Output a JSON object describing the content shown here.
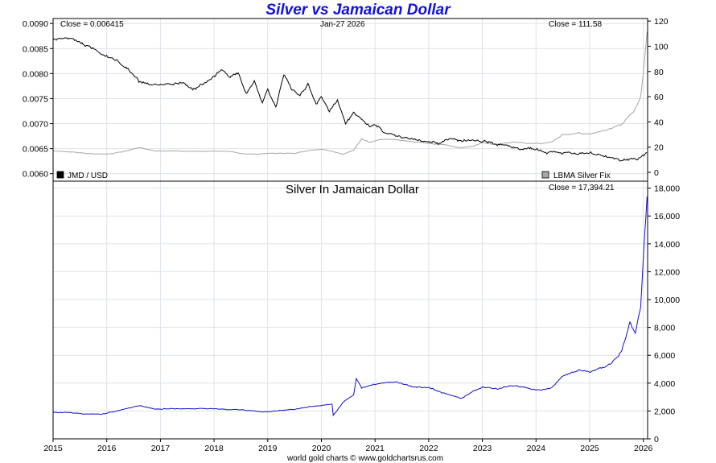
{
  "page": {
    "title": "Silver vs Jamaican Dollar",
    "footer": "world gold charts © www.goldchartsrus.com"
  },
  "chart_data": [
    {
      "type": "line",
      "title": "Silver vs Jamaican Dollar",
      "annotations": {
        "close_left": "Close = 0.006415",
        "date": "Jan-27  2026",
        "close_right": "Close = 111.58"
      },
      "legend": [
        {
          "name": "JMD / USD",
          "color": "#000000",
          "placement": "bottom-left"
        },
        {
          "name": "LBMA Silver Fix",
          "color": "#a6a6a6",
          "placement": "bottom-right"
        }
      ],
      "x_ticks": [
        "2015",
        "2016",
        "2017",
        "2018",
        "2019",
        "2020",
        "2021",
        "2022",
        "2023",
        "2024",
        "2025",
        "2026"
      ],
      "xlim": [
        2015.0,
        2026.08
      ],
      "left_axis": {
        "ylim": [
          0.00585,
          0.0091
        ],
        "ticks": [
          "0.0060",
          "0.0065",
          "0.0070",
          "0.0075",
          "0.0080",
          "0.0085",
          "0.0090"
        ]
      },
      "right_axis": {
        "ylim": [
          -7,
          122
        ],
        "ticks": [
          "0",
          "20",
          "40",
          "60",
          "80",
          "100",
          "120"
        ]
      },
      "grid": true,
      "series": [
        {
          "name": "JMD / USD",
          "axis": "left",
          "color": "#000000",
          "x": [
            2015.0,
            2015.2,
            2015.5,
            2015.8,
            2016.0,
            2016.2,
            2016.4,
            2016.6,
            2016.8,
            2017.0,
            2017.2,
            2017.4,
            2017.6,
            2017.8,
            2018.0,
            2018.15,
            2018.3,
            2018.45,
            2018.6,
            2018.75,
            2018.9,
            2019.0,
            2019.15,
            2019.3,
            2019.45,
            2019.6,
            2019.75,
            2019.9,
            2020.0,
            2020.15,
            2020.3,
            2020.45,
            2020.6,
            2020.75,
            2020.9,
            2021.0,
            2021.2,
            2021.4,
            2021.6,
            2021.8,
            2022.0,
            2022.2,
            2022.4,
            2022.6,
            2022.8,
            2023.0,
            2023.3,
            2023.6,
            2023.9,
            2024.2,
            2024.5,
            2024.8,
            2025.0,
            2025.3,
            2025.6,
            2025.9,
            2026.07
          ],
          "y": [
            0.00868,
            0.00872,
            0.00862,
            0.00848,
            0.00838,
            0.00825,
            0.00808,
            0.00782,
            0.00775,
            0.00776,
            0.00778,
            0.00782,
            0.00768,
            0.00778,
            0.00795,
            0.00806,
            0.00792,
            0.00803,
            0.0076,
            0.00784,
            0.00742,
            0.0077,
            0.00735,
            0.00798,
            0.00768,
            0.0076,
            0.0078,
            0.00738,
            0.00755,
            0.00725,
            0.00745,
            0.007,
            0.00722,
            0.00708,
            0.00692,
            0.00698,
            0.0068,
            0.00675,
            0.00672,
            0.00665,
            0.00665,
            0.0066,
            0.00672,
            0.00668,
            0.00664,
            0.00662,
            0.00658,
            0.00652,
            0.0065,
            0.00645,
            0.00643,
            0.0064,
            0.00642,
            0.00635,
            0.00628,
            0.00628,
            0.00642
          ]
        },
        {
          "name": "LBMA Silver Fix",
          "axis": "right",
          "color": "#a6a6a6",
          "x": [
            2015.0,
            2015.3,
            2015.6,
            2015.9,
            2016.1,
            2016.4,
            2016.6,
            2016.9,
            2017.2,
            2017.5,
            2017.8,
            2018.0,
            2018.3,
            2018.6,
            2018.9,
            2019.2,
            2019.5,
            2019.8,
            2020.0,
            2020.2,
            2020.4,
            2020.6,
            2020.75,
            2020.9,
            2021.1,
            2021.4,
            2021.7,
            2022.0,
            2022.3,
            2022.6,
            2022.8,
            2023.0,
            2023.3,
            2023.6,
            2023.9,
            2024.1,
            2024.3,
            2024.5,
            2024.8,
            2025.0,
            2025.3,
            2025.6,
            2025.75,
            2025.85,
            2025.95,
            2026.0,
            2026.07
          ],
          "y": [
            17.0,
            16.5,
            15.0,
            14.5,
            15.0,
            17.5,
            19.5,
            17.0,
            17.2,
            16.8,
            16.8,
            17.0,
            16.5,
            14.8,
            14.6,
            15.2,
            15.0,
            17.5,
            18.0,
            17.0,
            14.5,
            17.5,
            26.5,
            24.0,
            26.5,
            26.0,
            24.0,
            23.0,
            22.0,
            19.5,
            20.5,
            23.5,
            22.0,
            24.0,
            23.0,
            22.5,
            24.0,
            30.0,
            31.0,
            30.5,
            33.0,
            38.0,
            46.0,
            50.0,
            60.0,
            80.0,
            111.58
          ]
        }
      ]
    },
    {
      "type": "line",
      "title": "Silver In Jamaican Dollar",
      "annotations": {
        "close": "Close = 17,394.21"
      },
      "x_ticks": [
        "2015",
        "2016",
        "2017",
        "2018",
        "2019",
        "2020",
        "2021",
        "2022",
        "2023",
        "2024",
        "2025",
        "2026"
      ],
      "xlim": [
        2015.0,
        2026.08
      ],
      "right_axis": {
        "ylim": [
          0,
          18500
        ],
        "ticks": [
          "0",
          "2,000",
          "4,000",
          "6,000",
          "8,000",
          "10,000",
          "12,000",
          "14,000",
          "16,000",
          "18,000"
        ]
      },
      "grid": true,
      "series": [
        {
          "name": "Silver In Jamaican Dollar",
          "color": "#1010cc",
          "x": [
            2015.0,
            2015.3,
            2015.6,
            2015.9,
            2016.1,
            2016.4,
            2016.6,
            2016.9,
            2017.2,
            2017.5,
            2017.8,
            2018.0,
            2018.3,
            2018.6,
            2018.9,
            2019.2,
            2019.5,
            2019.8,
            2020.0,
            2020.2,
            2020.22,
            2020.4,
            2020.6,
            2020.65,
            2020.75,
            2020.9,
            2021.1,
            2021.4,
            2021.7,
            2022.0,
            2022.3,
            2022.6,
            2022.8,
            2023.0,
            2023.3,
            2023.6,
            2023.9,
            2024.1,
            2024.3,
            2024.5,
            2024.8,
            2025.0,
            2025.3,
            2025.5,
            2025.6,
            2025.75,
            2025.85,
            2025.95,
            2026.0,
            2026.07
          ],
          "y": [
            1900,
            1900,
            1800,
            1750,
            1900,
            2200,
            2400,
            2100,
            2200,
            2150,
            2150,
            2150,
            2100,
            2050,
            1950,
            2000,
            2100,
            2300,
            2400,
            2500,
            1700,
            2600,
            3200,
            4300,
            3600,
            3800,
            4000,
            4100,
            3700,
            3700,
            3300,
            2900,
            3300,
            3700,
            3600,
            3800,
            3600,
            3500,
            3700,
            4500,
            5000,
            4800,
            5200,
            5800,
            6400,
            8400,
            7600,
            9500,
            13000,
            17394.21
          ]
        }
      ]
    }
  ]
}
